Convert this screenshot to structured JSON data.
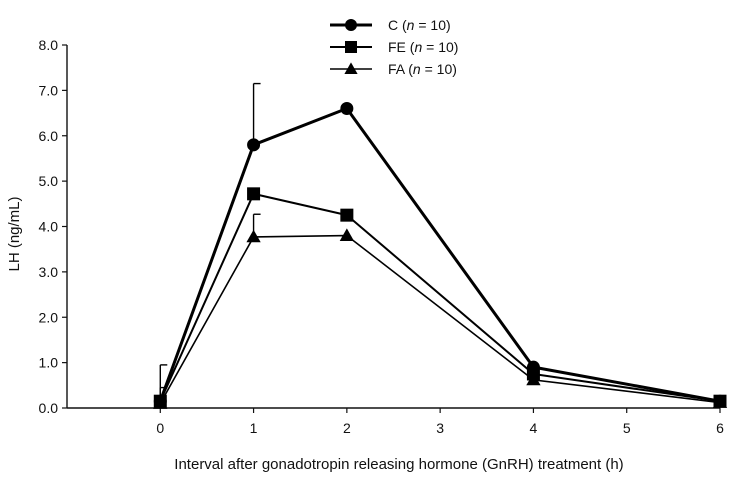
{
  "chart_data": {
    "type": "line",
    "xlabel": "Interval after gonadotropin releasing hormone (GnRH) treatment (h)",
    "ylabel": "LH (ng/mL)",
    "xlim": [
      -1,
      6
    ],
    "ylim": [
      0,
      8
    ],
    "x_ticks": [
      "0",
      "1",
      "2",
      "3",
      "4",
      "5",
      "6"
    ],
    "y_ticks": [
      "0.0",
      "1.0",
      "2.0",
      "3.0",
      "4.0",
      "5.0",
      "6.0",
      "7.0",
      "8.0"
    ],
    "legend_position": "top-center",
    "grid": false,
    "series": [
      {
        "name": "C",
        "n_label": "n",
        "n_value": "= 10)",
        "marker": "circle",
        "x": [
          0,
          1,
          2,
          4,
          6
        ],
        "values": [
          0.15,
          5.8,
          6.6,
          0.9,
          0.15
        ],
        "error": [
          0.8,
          1.35,
          0,
          0,
          0
        ]
      },
      {
        "name": "FE",
        "n_label": "n",
        "n_value": "= 10)",
        "marker": "square",
        "x": [
          0,
          1,
          2,
          4,
          6
        ],
        "values": [
          0.15,
          4.72,
          4.25,
          0.75,
          0.15
        ],
        "error": [
          0.3,
          0,
          0,
          0,
          0
        ]
      },
      {
        "name": "FA",
        "n_label": "n",
        "n_value": "= 10)",
        "marker": "triangle",
        "x": [
          0,
          1,
          2,
          4,
          6
        ],
        "values": [
          0.1,
          3.77,
          3.8,
          0.62,
          0.12
        ],
        "error": [
          0,
          0.5,
          0,
          0,
          0
        ]
      }
    ]
  }
}
